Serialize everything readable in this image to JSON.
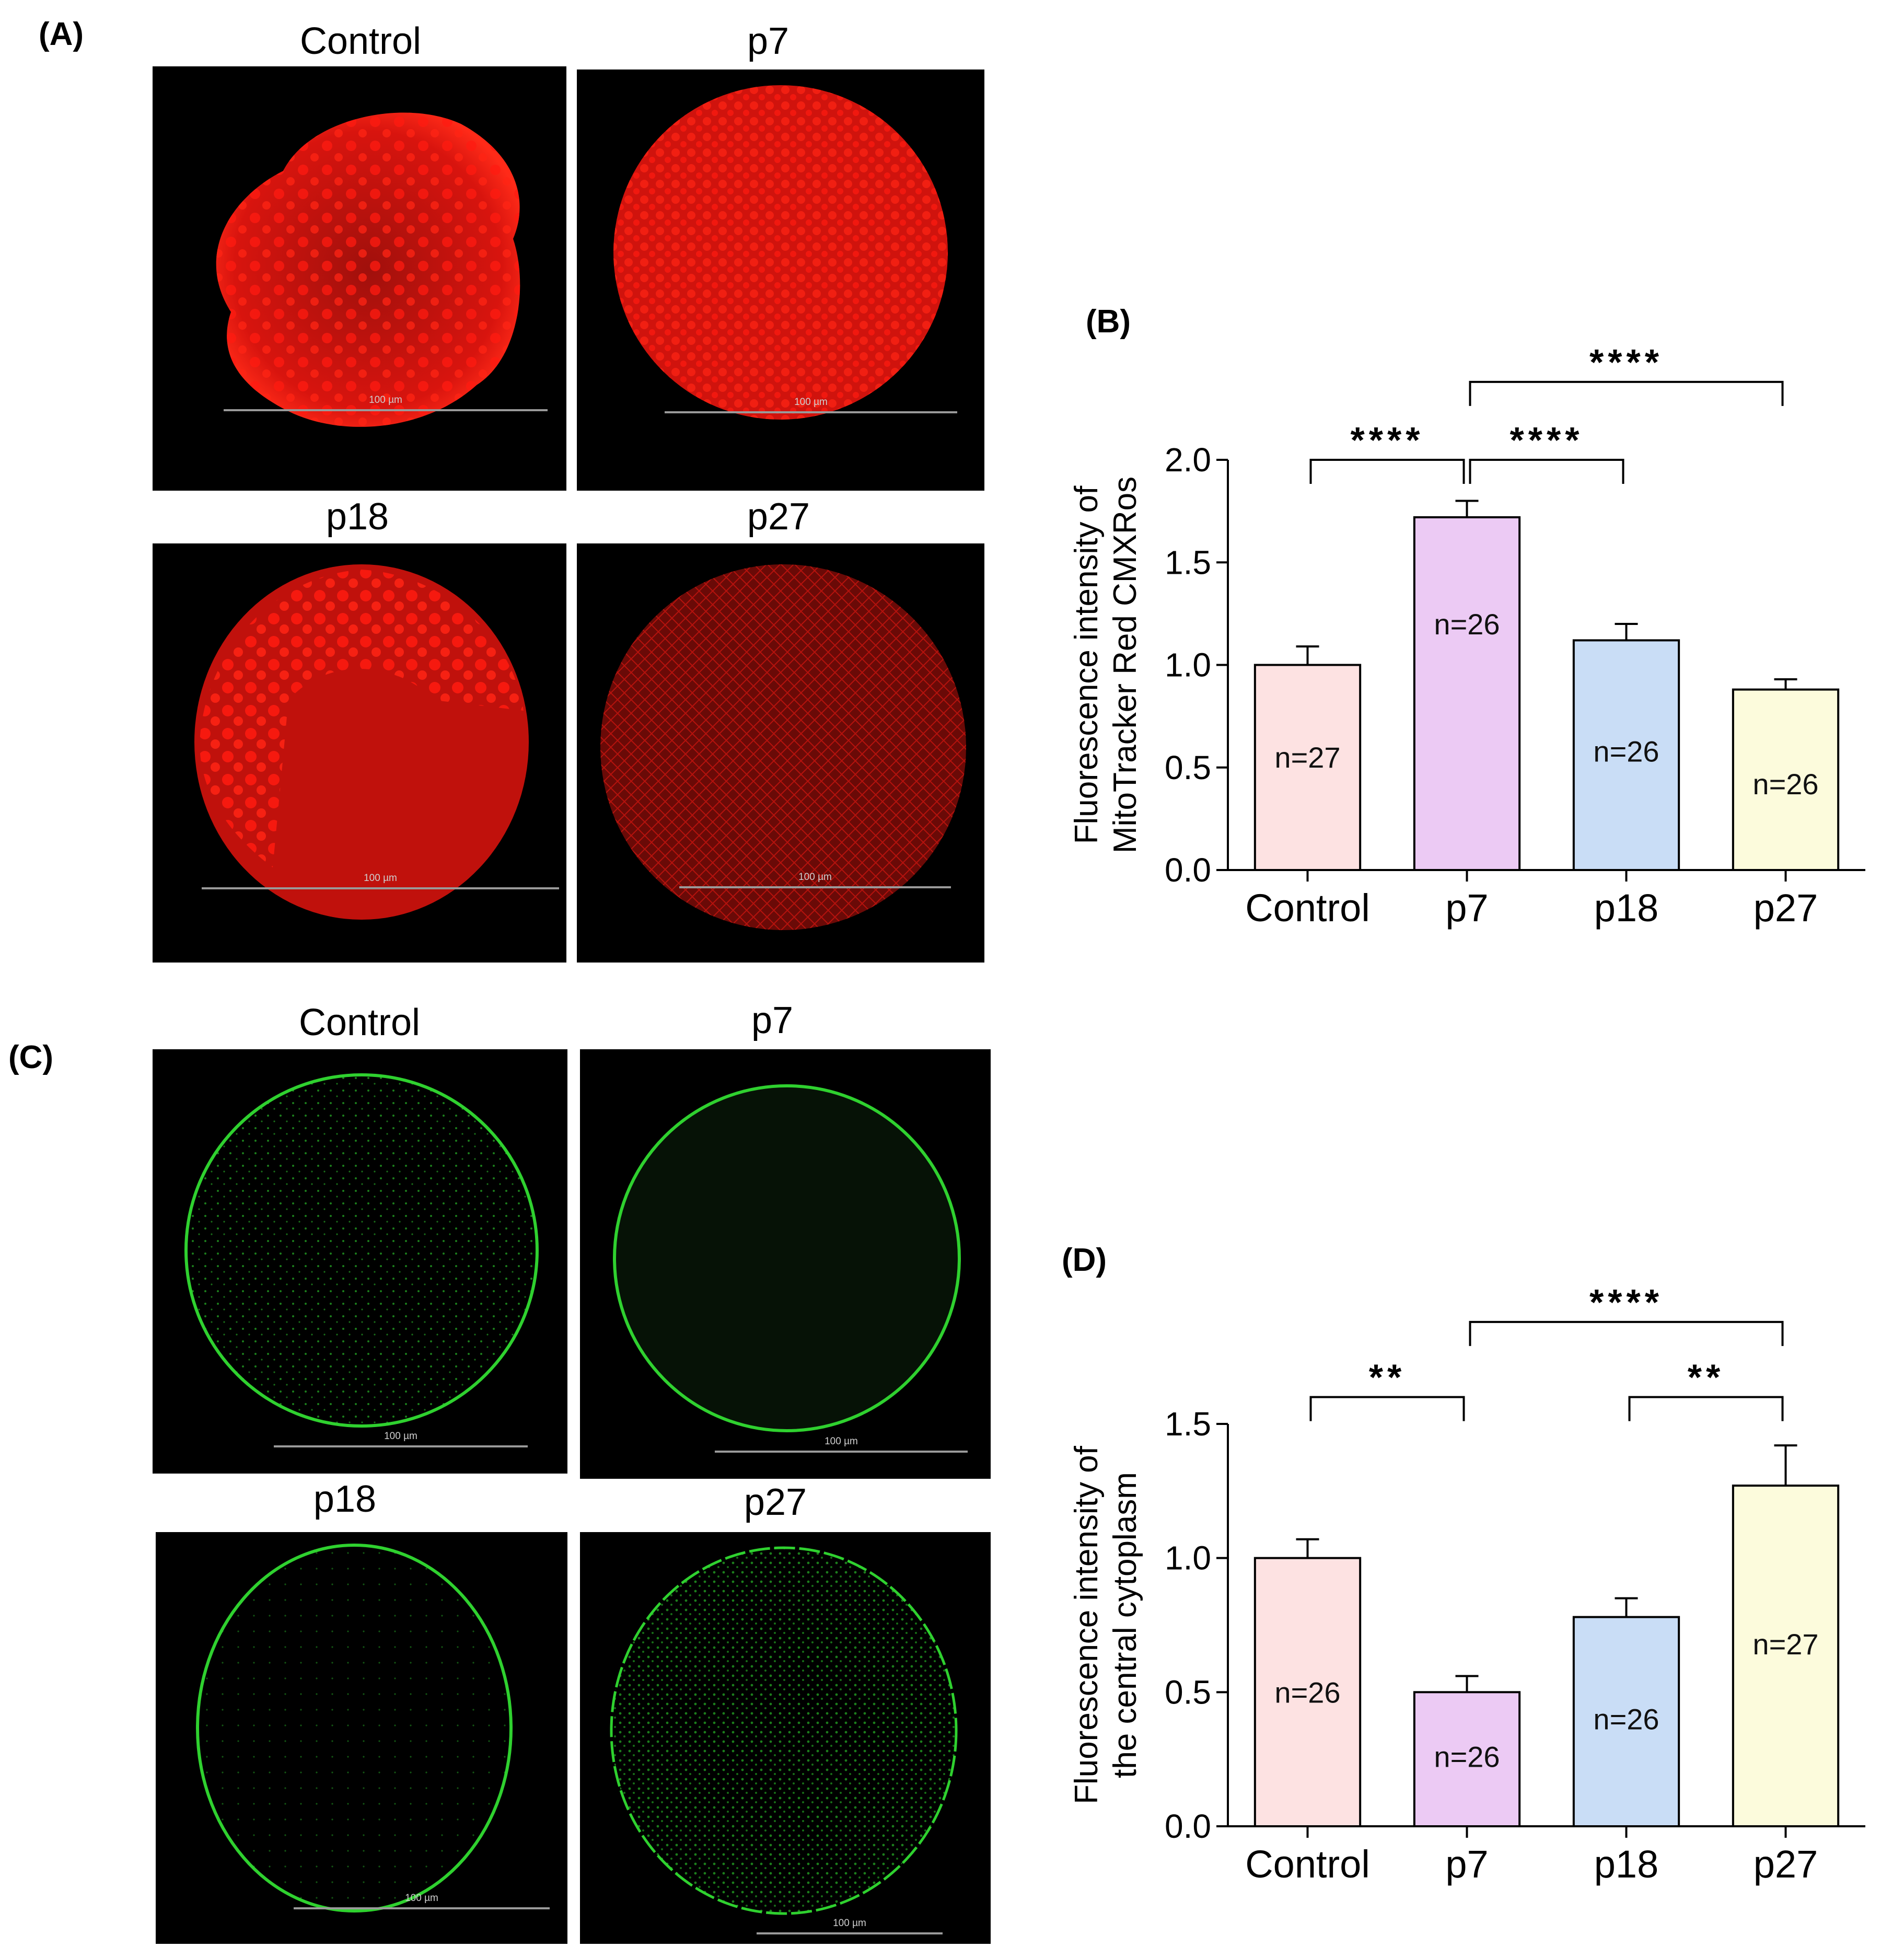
{
  "panels": {
    "A": "(A)",
    "B": "(B)",
    "C": "(C)",
    "D": "(D)"
  },
  "red_images": [
    {
      "title": "Control",
      "scale": "100 µm"
    },
    {
      "title": "p7",
      "scale": "100 µm"
    },
    {
      "title": "p18",
      "scale": "100 µm"
    },
    {
      "title": "p27",
      "scale": "100 µm"
    }
  ],
  "green_images": [
    {
      "title": "Control",
      "scale": "100 µm"
    },
    {
      "title": "p7",
      "scale": "100 µm"
    },
    {
      "title": "p18",
      "scale": "100 µm"
    },
    {
      "title": "p27",
      "scale": "100 µm"
    }
  ],
  "colors": {
    "control": "#fde2e2",
    "p7": "#eccaf4",
    "p18": "#c9ddf6",
    "p27": "#fcfbdc",
    "red_signal": "#ff1a10",
    "green_signal": "#2fd12f"
  },
  "chart_data": [
    {
      "type": "bar",
      "categories": [
        "Control",
        "p7",
        "p18",
        "p27"
      ],
      "values": [
        1.0,
        1.72,
        1.12,
        0.88
      ],
      "errors": [
        0.09,
        0.08,
        0.08,
        0.05
      ],
      "n_labels": [
        "n=27",
        "n=26",
        "n=26",
        "n=26"
      ],
      "n_label_y": [
        0.55,
        1.2,
        0.58,
        0.42
      ],
      "ylabel_lines": [
        "Fluorescence intensity of",
        "MitoTracker Red CMXRos"
      ],
      "ylim": [
        0,
        2.0
      ],
      "yticks": [
        "0.0",
        "0.5",
        "1.0",
        "1.5",
        "2.0"
      ],
      "significance": [
        {
          "from": 0,
          "to": 1,
          "label": "****",
          "level": 2.0
        },
        {
          "from": 1,
          "to": 2,
          "label": "****",
          "level": 2.0
        },
        {
          "from": 1,
          "to": 3,
          "label": "****",
          "level": 2.38
        }
      ]
    },
    {
      "type": "bar",
      "categories": [
        "Control",
        "p7",
        "p18",
        "p27"
      ],
      "values": [
        1.0,
        0.5,
        0.78,
        1.27
      ],
      "errors": [
        0.07,
        0.06,
        0.07,
        0.15
      ],
      "n_labels": [
        "n=26",
        "n=26",
        "n=26",
        "n=27"
      ],
      "n_label_y": [
        0.5,
        0.26,
        0.4,
        0.68
      ],
      "ylabel_lines": [
        "Fluorescence intensity of",
        "the central cytoplasm"
      ],
      "ylim": [
        0,
        1.5
      ],
      "yticks": [
        "0.0",
        "0.5",
        "1.0",
        "1.5"
      ],
      "significance": [
        {
          "from": 0,
          "to": 1,
          "label": "**",
          "level": 1.6
        },
        {
          "from": 2,
          "to": 3,
          "label": "**",
          "level": 1.6
        },
        {
          "from": 1,
          "to": 3,
          "label": "****",
          "level": 1.88
        }
      ]
    }
  ]
}
